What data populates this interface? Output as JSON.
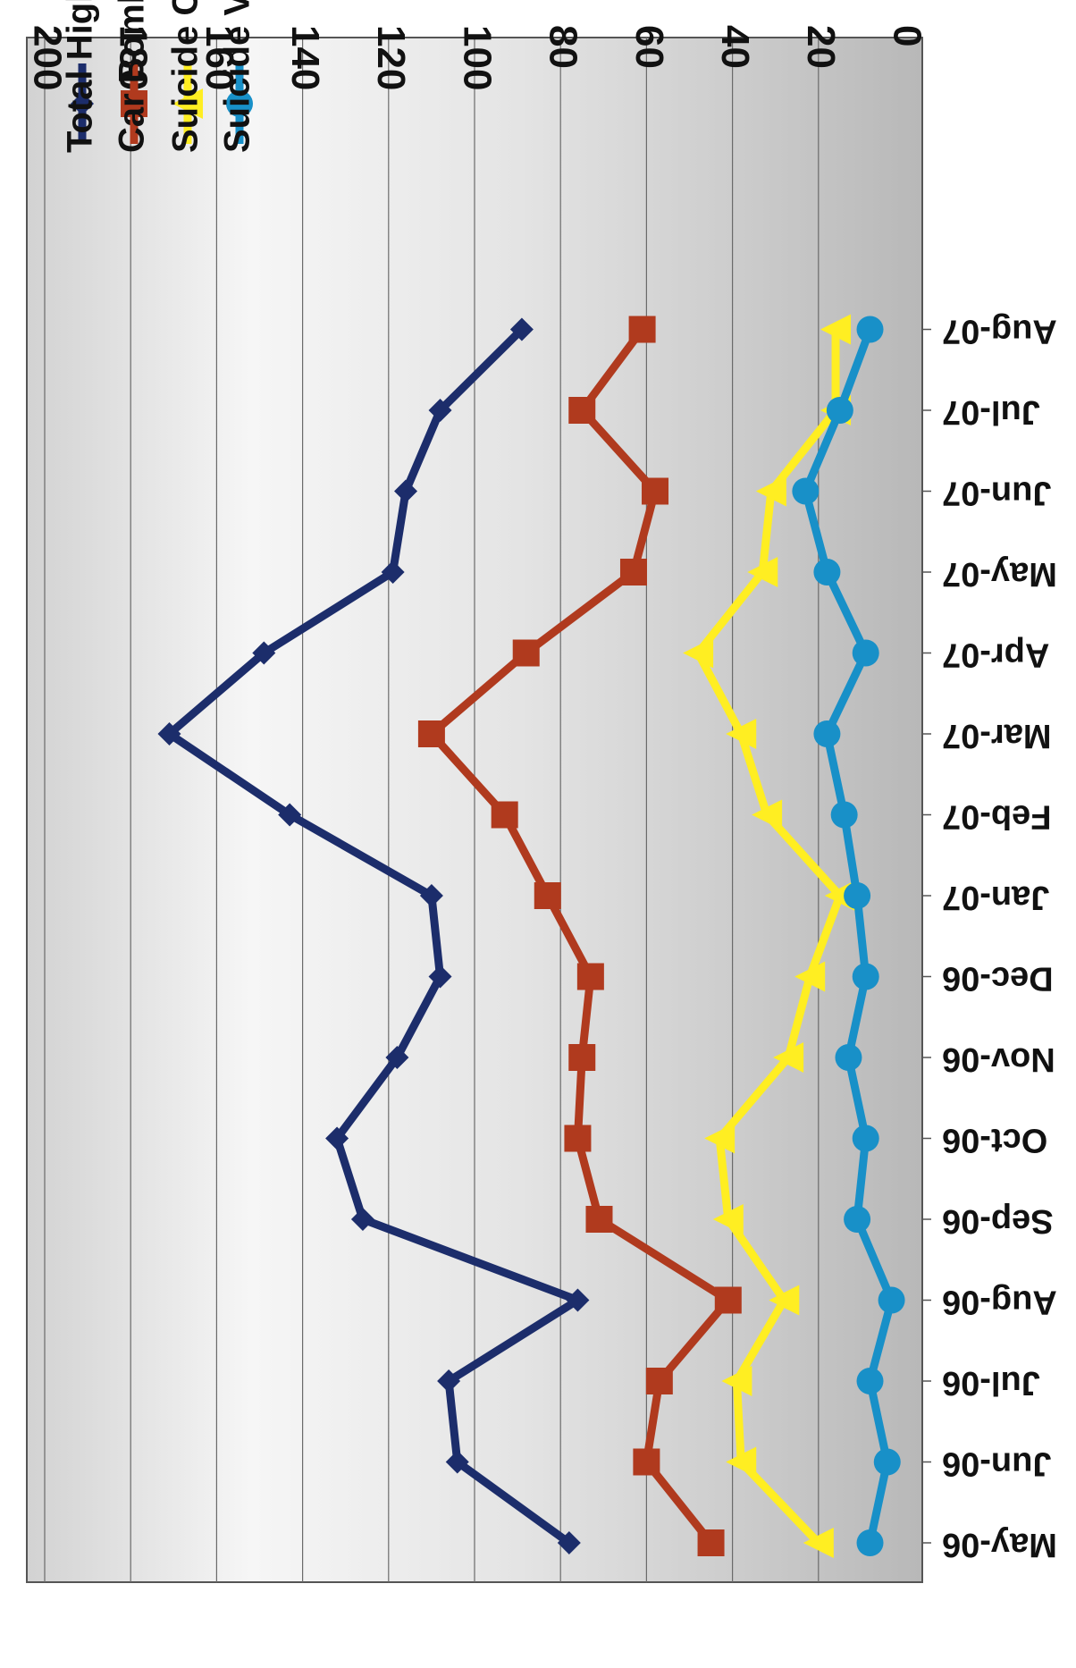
{
  "chart_data": {
    "type": "line",
    "orientation": "rotated-180",
    "categories": [
      "May-06",
      "Jun-06",
      "Jul-06",
      "Aug-06",
      "Sep-06",
      "Oct-06",
      "Nov-06",
      "Dec-06",
      "Jan-07",
      "Feb-07",
      "Mar-07",
      "Apr-07",
      "May-07",
      "Jun-07",
      "Jul-07",
      "Aug-07"
    ],
    "ylim": [
      0,
      200
    ],
    "yticks": [
      0,
      20,
      40,
      60,
      80,
      100,
      120,
      140,
      160,
      180,
      200
    ],
    "grid": true,
    "legend_position": "bottom-left",
    "series": [
      {
        "name": "Total High Profile Attacks",
        "color": "#1c2d6b",
        "marker": "diamond",
        "values": [
          78,
          104,
          106,
          76,
          126,
          132,
          118,
          108,
          110,
          143,
          171,
          149,
          119,
          116,
          108,
          89
        ]
      },
      {
        "name": "Car Bomb",
        "color": "#b03a1e",
        "marker": "square",
        "values": [
          45,
          60,
          57,
          41,
          71,
          76,
          75,
          73,
          83,
          93,
          110,
          88,
          63,
          58,
          75,
          61
        ]
      },
      {
        "name": "Suicide Car Bomb",
        "color": "#ffee22",
        "marker": "triangle",
        "values": [
          20,
          38,
          39,
          28,
          41,
          43,
          27,
          22,
          15,
          32,
          38,
          48,
          33,
          31,
          16,
          16
        ]
      },
      {
        "name": "Suicide Vest",
        "color": "#1890c8",
        "marker": "circle",
        "values": [
          8,
          4,
          8,
          3,
          11,
          9,
          13,
          9,
          11,
          14,
          18,
          9,
          18,
          23,
          15,
          8
        ]
      }
    ]
  }
}
